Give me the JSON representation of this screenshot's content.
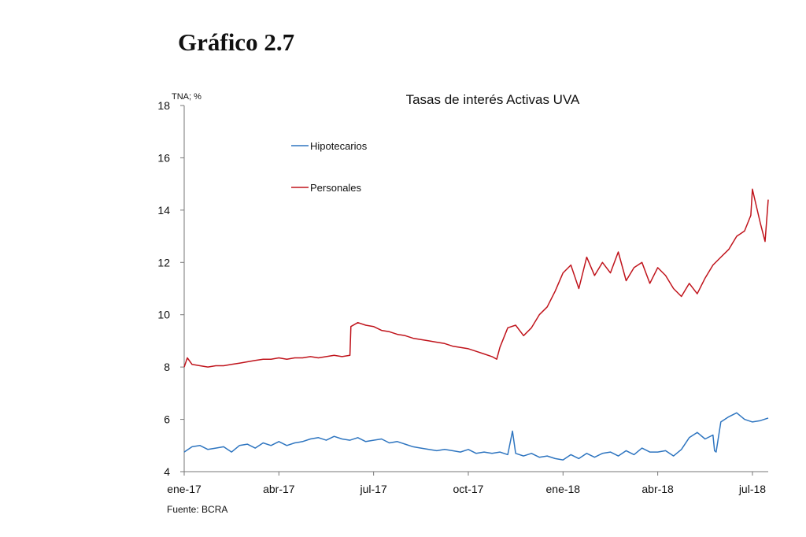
{
  "heading": "Gráfico 2.7",
  "source": "Fuente: BCRA",
  "chart_data": {
    "type": "line",
    "title": "Tasas de interés Activas UVA",
    "ylabel": "TNA; %",
    "ylim": [
      4,
      18
    ],
    "yticks": [
      "4",
      "6",
      "8",
      "10",
      "12",
      "14",
      "16",
      "18"
    ],
    "xlim": [
      0,
      18.5
    ],
    "xticks": [
      {
        "label": "ene-17",
        "x": 0
      },
      {
        "label": "abr-17",
        "x": 3
      },
      {
        "label": "jul-17",
        "x": 6
      },
      {
        "label": "oct-17",
        "x": 9
      },
      {
        "label": "ene-18",
        "x": 12
      },
      {
        "label": "abr-18",
        "x": 15
      },
      {
        "label": "jul-18",
        "x": 18
      }
    ],
    "legend_position": "top-left",
    "series": [
      {
        "name": "Hipotecarios",
        "color": "#2e75c0",
        "x": [
          0,
          0.25,
          0.5,
          0.75,
          1,
          1.25,
          1.5,
          1.75,
          2,
          2.25,
          2.5,
          2.75,
          3,
          3.25,
          3.5,
          3.75,
          4,
          4.25,
          4.5,
          4.75,
          5,
          5.25,
          5.5,
          5.75,
          6,
          6.25,
          6.5,
          6.75,
          7,
          7.25,
          7.5,
          7.75,
          8,
          8.25,
          8.5,
          8.75,
          9,
          9.25,
          9.5,
          9.75,
          10,
          10.25,
          10.4,
          10.5,
          10.75,
          11,
          11.25,
          11.5,
          11.75,
          12,
          12.25,
          12.5,
          12.75,
          13,
          13.25,
          13.5,
          13.75,
          14,
          14.25,
          14.5,
          14.75,
          15,
          15.25,
          15.5,
          15.75,
          16,
          16.25,
          16.5,
          16.75,
          16.8,
          16.85,
          17,
          17.25,
          17.5,
          17.75,
          18,
          18.25,
          18.5
        ],
        "values": [
          4.75,
          4.95,
          5.0,
          4.85,
          4.9,
          4.95,
          4.75,
          5.0,
          5.05,
          4.9,
          5.1,
          5.0,
          5.15,
          5.0,
          5.1,
          5.15,
          5.25,
          5.3,
          5.2,
          5.35,
          5.25,
          5.2,
          5.3,
          5.15,
          5.2,
          5.25,
          5.1,
          5.15,
          5.05,
          4.95,
          4.9,
          4.85,
          4.8,
          4.85,
          4.8,
          4.75,
          4.85,
          4.7,
          4.75,
          4.7,
          4.75,
          4.65,
          5.55,
          4.7,
          4.6,
          4.7,
          4.55,
          4.6,
          4.5,
          4.45,
          4.65,
          4.5,
          4.7,
          4.55,
          4.7,
          4.75,
          4.6,
          4.8,
          4.65,
          4.9,
          4.75,
          4.75,
          4.8,
          4.6,
          4.85,
          5.3,
          5.5,
          5.25,
          5.4,
          4.8,
          4.75,
          5.9,
          6.1,
          6.25,
          6.0,
          5.9,
          5.95,
          6.05
        ]
      },
      {
        "name": "Personales",
        "color": "#c0141c",
        "x": [
          0,
          0.1,
          0.25,
          0.5,
          0.75,
          1,
          1.25,
          1.5,
          1.75,
          2,
          2.25,
          2.5,
          2.75,
          3,
          3.25,
          3.5,
          3.75,
          4,
          4.25,
          4.5,
          4.75,
          5,
          5.25,
          5.28,
          5.5,
          5.75,
          6,
          6.25,
          6.5,
          6.75,
          7,
          7.25,
          7.5,
          7.75,
          8,
          8.25,
          8.5,
          8.75,
          9,
          9.25,
          9.5,
          9.75,
          9.9,
          10,
          10.25,
          10.5,
          10.75,
          11,
          11.25,
          11.5,
          11.75,
          12,
          12.25,
          12.5,
          12.75,
          13,
          13.25,
          13.5,
          13.75,
          14,
          14.25,
          14.5,
          14.75,
          15,
          15.25,
          15.5,
          15.75,
          16,
          16.25,
          16.5,
          16.75,
          17,
          17.25,
          17.5,
          17.75,
          17.95,
          18,
          18.25,
          18.4,
          18.5
        ],
        "values": [
          8.0,
          8.35,
          8.1,
          8.05,
          8.0,
          8.05,
          8.05,
          8.1,
          8.15,
          8.2,
          8.25,
          8.3,
          8.3,
          8.35,
          8.3,
          8.35,
          8.35,
          8.4,
          8.35,
          8.4,
          8.45,
          8.4,
          8.45,
          9.55,
          9.7,
          9.6,
          9.55,
          9.4,
          9.35,
          9.25,
          9.2,
          9.1,
          9.05,
          9.0,
          8.95,
          8.9,
          8.8,
          8.75,
          8.7,
          8.6,
          8.5,
          8.4,
          8.3,
          8.75,
          9.5,
          9.6,
          9.2,
          9.5,
          10.0,
          10.3,
          10.9,
          11.6,
          11.9,
          11.0,
          12.2,
          11.5,
          12.0,
          11.6,
          12.4,
          11.3,
          11.8,
          12.0,
          11.2,
          11.8,
          11.5,
          11.0,
          10.7,
          11.2,
          10.8,
          11.4,
          11.9,
          12.2,
          12.5,
          13.0,
          13.2,
          13.8,
          14.8,
          13.5,
          12.8,
          14.4
        ]
      }
    ]
  }
}
